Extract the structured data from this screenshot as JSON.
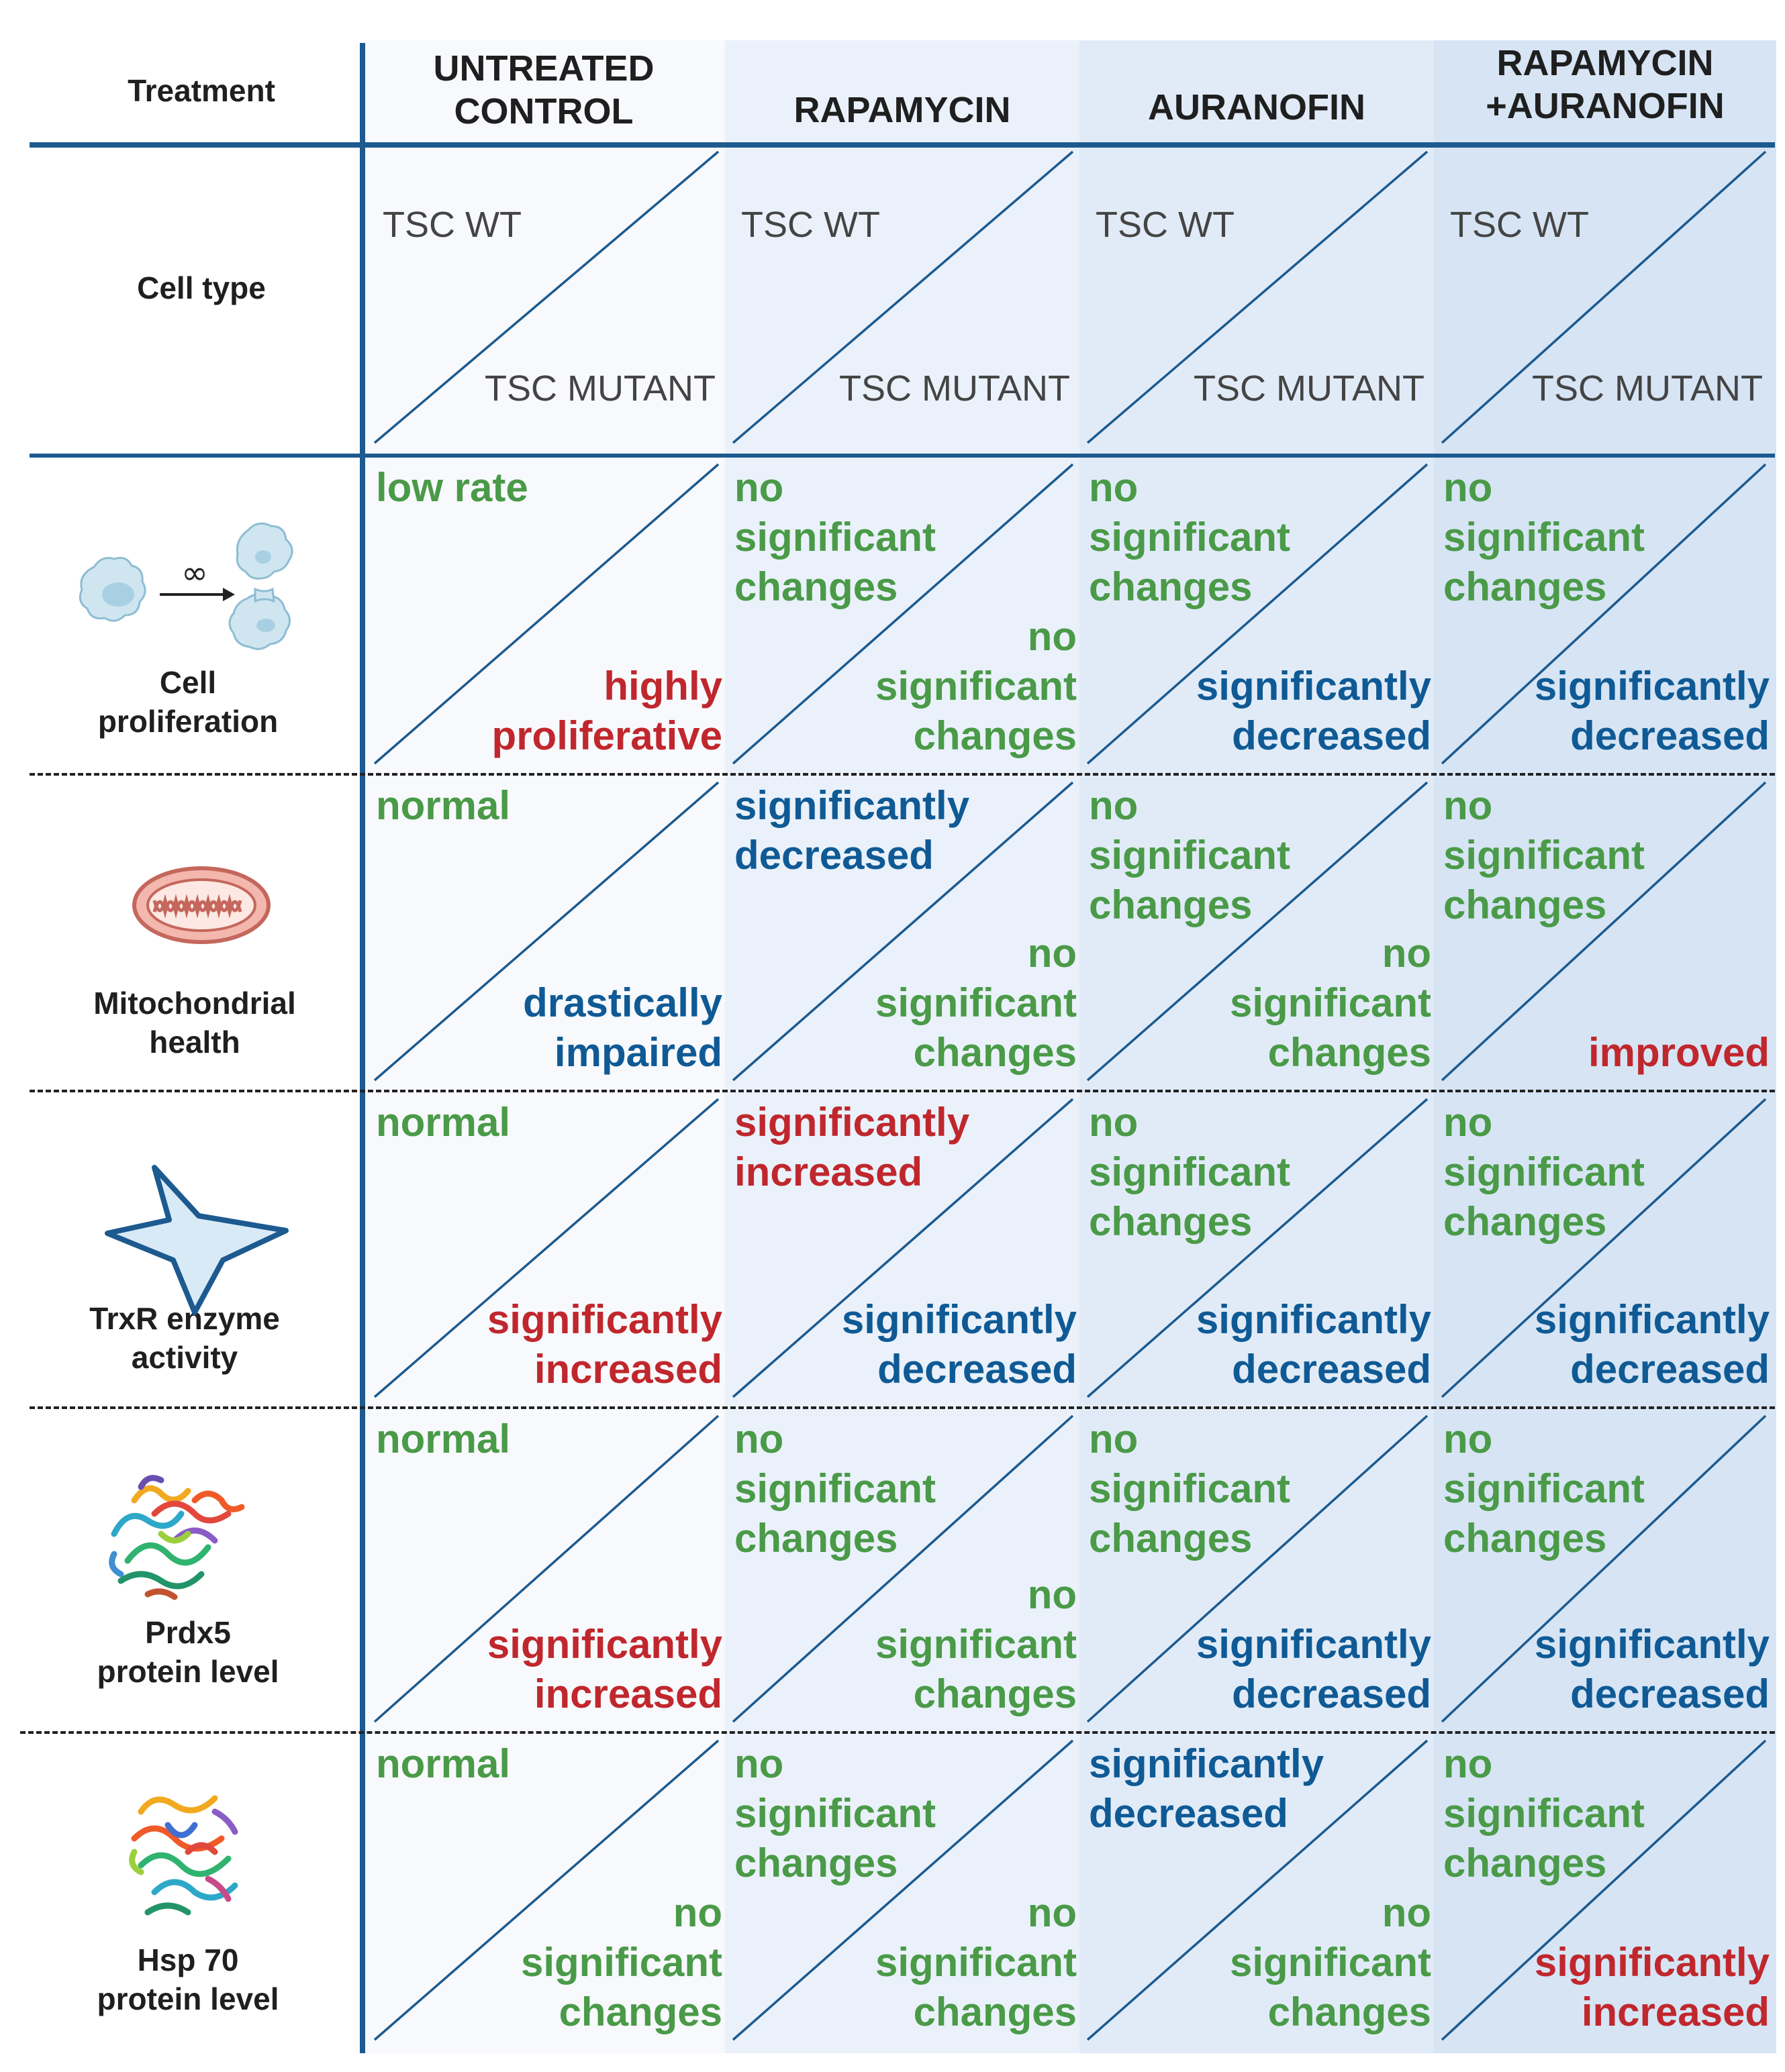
{
  "colors": {
    "line_blue": "#1c5a8f",
    "green": "#4a9a48",
    "red": "#c0272d",
    "blue": "#0f5a95",
    "header_text": "#1f1f1f",
    "cell_type_text": "#444444",
    "col_bg": [
      "#f7f9fc",
      "#eaf1fa",
      "#e1ebf7",
      "#d6e4f4"
    ]
  },
  "header": {
    "treatment_label": "Treatment",
    "columns": [
      "UNTREATED\nCONTROL",
      "RAPAMYCIN",
      "AURANOFIN",
      "RAPAMYCIN\n+AURANOFIN"
    ]
  },
  "cell_type": {
    "label": "Cell type",
    "wt": "TSC WT",
    "mutant": "TSC MUTANT"
  },
  "icons": {
    "cell_proliferation": "dividing-cell-icon",
    "infinity_symbol": "∞",
    "mitochondrial_health": "mitochondrion-icon",
    "trxr_activity": "star-icon",
    "prdx5": "protein-structure-icon",
    "hsp70": "protein-structure-icon"
  },
  "rows": [
    {
      "label": "Cell\nproliferation",
      "cells": [
        {
          "wt": "low rate",
          "wt_color": "green",
          "mut": "highly\nproliferative",
          "mut_color": "red"
        },
        {
          "wt": "no\nsignificant\nchanges",
          "wt_color": "green",
          "mut": "no\nsignificant\nchanges",
          "mut_color": "green"
        },
        {
          "wt": "no\nsignificant\nchanges",
          "wt_color": "green",
          "mut": "significantly\ndecreased",
          "mut_color": "blue"
        },
        {
          "wt": "no\nsignificant\nchanges",
          "wt_color": "green",
          "mut": "significantly\ndecreased",
          "mut_color": "blue"
        }
      ]
    },
    {
      "label": "Mitochondrial\nhealth",
      "cells": [
        {
          "wt": "normal",
          "wt_color": "green",
          "mut": "drastically\nimpaired",
          "mut_color": "blue"
        },
        {
          "wt": "significantly\ndecreased",
          "wt_color": "blue",
          "mut": "no\nsignificant\nchanges",
          "mut_color": "green"
        },
        {
          "wt": "no\nsignificant\nchanges",
          "wt_color": "green",
          "mut": "no\nsignificant\nchanges",
          "mut_color": "green"
        },
        {
          "wt": "no\nsignificant\nchanges",
          "wt_color": "green",
          "mut": "improved",
          "mut_color": "red"
        }
      ]
    },
    {
      "label": "TrxR enzyme\nactivity",
      "cells": [
        {
          "wt": "normal",
          "wt_color": "green",
          "mut": "significantly\nincreased",
          "mut_color": "red"
        },
        {
          "wt": "significantly\nincreased",
          "wt_color": "red",
          "mut": "significantly\ndecreased",
          "mut_color": "blue"
        },
        {
          "wt": "no\nsignificant\nchanges",
          "wt_color": "green",
          "mut": "significantly\ndecreased",
          "mut_color": "blue"
        },
        {
          "wt": "no\nsignificant\nchanges",
          "wt_color": "green",
          "mut": "significantly\ndecreased",
          "mut_color": "blue"
        }
      ]
    },
    {
      "label": "Prdx5\nprotein level",
      "cells": [
        {
          "wt": "normal",
          "wt_color": "green",
          "mut": "significantly\nincreased",
          "mut_color": "red"
        },
        {
          "wt": "no\nsignificant\nchanges",
          "wt_color": "green",
          "mut": "no\nsignificant\nchanges",
          "mut_color": "green"
        },
        {
          "wt": "no\nsignificant\nchanges",
          "wt_color": "green",
          "mut": "significantly\ndecreased",
          "mut_color": "blue"
        },
        {
          "wt": "no\nsignificant\nchanges",
          "wt_color": "green",
          "mut": "significantly\ndecreased",
          "mut_color": "blue"
        }
      ]
    },
    {
      "label": "Hsp 70\nprotein level",
      "cells": [
        {
          "wt": "normal",
          "wt_color": "green",
          "mut": "no\nsignificant\nchanges",
          "mut_color": "green"
        },
        {
          "wt": "no\nsignificant\nchanges",
          "wt_color": "green",
          "mut": "no\nsignificant\nchanges",
          "mut_color": "green"
        },
        {
          "wt": "significantly\ndecreased",
          "wt_color": "blue",
          "mut": "no\nsignificant\nchanges",
          "mut_color": "green"
        },
        {
          "wt": "no\nsignificant\nchanges",
          "wt_color": "green",
          "mut": "significantly\nincreased",
          "mut_color": "red"
        }
      ]
    }
  ]
}
